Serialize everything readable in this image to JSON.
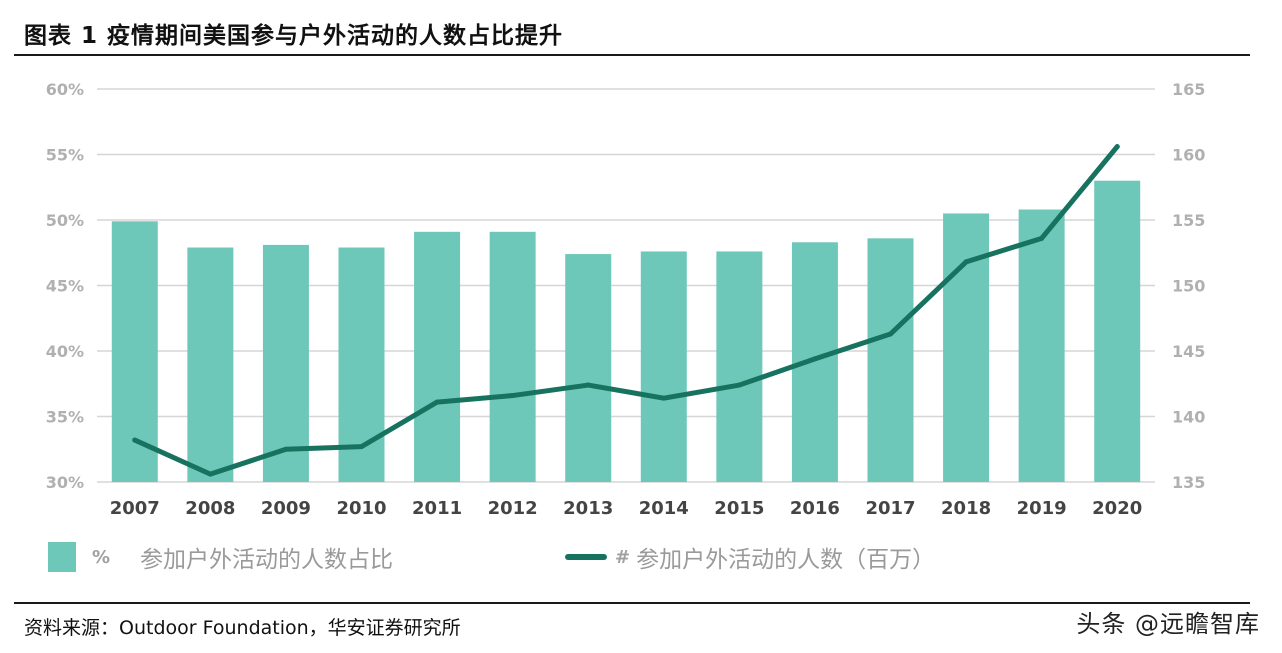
{
  "header": {
    "title": "图表 1  疫情期间美国参与户外活动的人数占比提升"
  },
  "legend": {
    "bar_prefix": "%",
    "bar_label": "参加户外活动的人数占比",
    "line_prefix": "#",
    "line_label": "参加户外活动的人数（百万）"
  },
  "footer": {
    "source": "资料来源：Outdoor Foundation，华安证券研究所",
    "watermark": "头条 @远瞻智库"
  },
  "colors": {
    "bar": "#6ec8b9",
    "line": "#17735f",
    "grid": "#d6d6d6",
    "tick": "#b0b0b0",
    "xtick": "#444444"
  },
  "chart_data": {
    "type": "bar+line",
    "categories": [
      "2007",
      "2008",
      "2009",
      "2010",
      "2011",
      "2012",
      "2013",
      "2014",
      "2015",
      "2016",
      "2017",
      "2018",
      "2019",
      "2020"
    ],
    "series": [
      {
        "name": "参加户外活动的人数占比",
        "type": "bar",
        "axis": "left",
        "values": [
          49.9,
          47.9,
          48.1,
          47.9,
          49.1,
          49.1,
          47.4,
          47.6,
          47.6,
          48.3,
          48.6,
          50.5,
          50.8,
          53.0
        ]
      },
      {
        "name": "参加户外活动的人数（百万）",
        "type": "line",
        "axis": "right",
        "values": [
          138.2,
          135.6,
          137.5,
          137.7,
          141.1,
          141.6,
          142.4,
          141.4,
          142.4,
          144.4,
          146.3,
          151.8,
          153.6,
          160.6
        ]
      }
    ],
    "y_left": {
      "ylim": [
        30,
        60
      ],
      "ticks": [
        "30%",
        "35%",
        "40%",
        "45%",
        "50%",
        "55%",
        "60%"
      ],
      "tick_values": [
        30,
        35,
        40,
        45,
        50,
        55,
        60
      ]
    },
    "y_right": {
      "ylim": [
        135,
        165
      ],
      "ticks": [
        "135",
        "140",
        "145",
        "150",
        "155",
        "160",
        "165"
      ],
      "tick_values": [
        135,
        140,
        145,
        150,
        155,
        160,
        165
      ]
    },
    "grid": true,
    "legend_position": "bottom"
  }
}
